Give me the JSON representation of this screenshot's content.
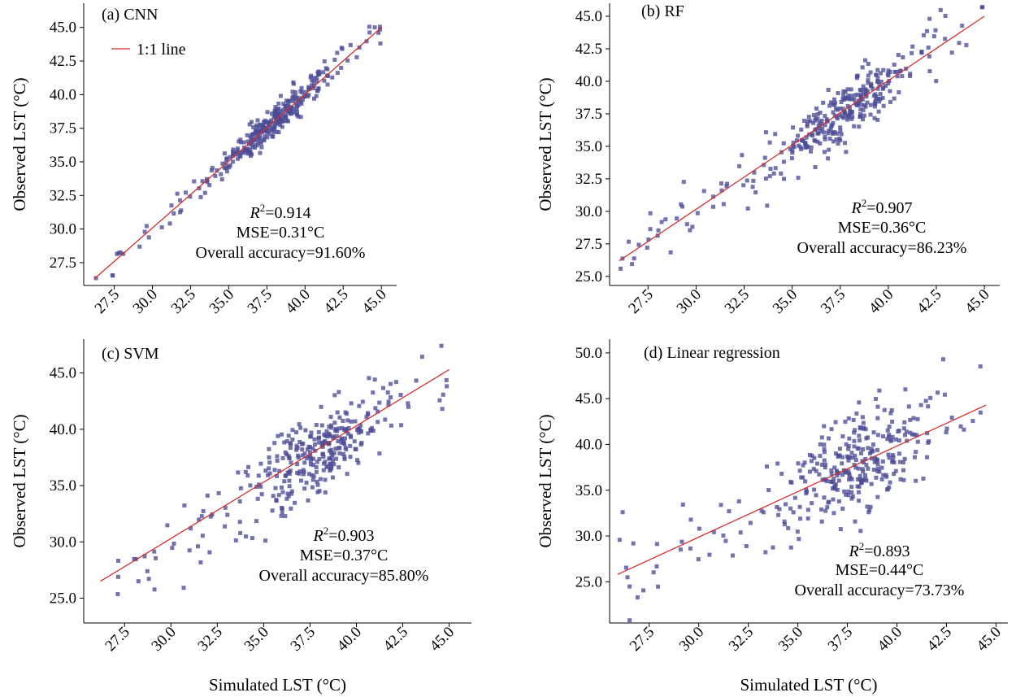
{
  "figure": {
    "x_label": "Simulated LST (°C)",
    "y_label": "Observed LST (°C)",
    "legend_label": "1:1 line",
    "marker_color": "#4b4b96",
    "line_color": "#d32f2f"
  },
  "chart_data": [
    {
      "id": "a",
      "type": "scatter",
      "title": "(a) CNN",
      "xlabel": "",
      "ylabel": "Observed LST (°C)",
      "xlim": [
        25.5,
        46.0
      ],
      "ylim": [
        25.8,
        46.8
      ],
      "xticks": [
        "27.5",
        "30.0",
        "32.5",
        "35.0",
        "37.5",
        "40.0",
        "42.5",
        "45.0"
      ],
      "yticks": [
        "27.5",
        "30.0",
        "32.5",
        "35.0",
        "37.5",
        "40.0",
        "42.5",
        "45.0"
      ],
      "stats": {
        "r2_label": "R",
        "r2_value": "=0.914",
        "mse": "MSE=0.31°C",
        "accuracy": "Overall accuracy=91.60%"
      },
      "fit_line": [
        [
          26.2,
          26.3
        ],
        [
          45.0,
          45.0
        ]
      ],
      "legend": {
        "label": "1:1 line",
        "placement": "top-left"
      },
      "scatter": {
        "count": 330,
        "x_range": [
          26.3,
          45.1
        ],
        "noise": 0.55,
        "cluster_center": 38.0,
        "cluster_spread": 1.9,
        "seed": 11
      }
    },
    {
      "id": "b",
      "type": "scatter",
      "title": "(b) RF",
      "xlabel": "",
      "ylabel": "Observed LST (°C)",
      "xlim": [
        25.5,
        45.8
      ],
      "ylim": [
        24.3,
        46.0
      ],
      "xticks": [
        "27.5",
        "30.0",
        "32.5",
        "35.0",
        "37.5",
        "40.0",
        "42.5",
        "45.0"
      ],
      "yticks": [
        "25.0",
        "27.5",
        "30.0",
        "32.5",
        "35.0",
        "37.5",
        "40.0",
        "42.5",
        "45.0"
      ],
      "stats": {
        "r2_label": "R",
        "r2_value": "=0.907",
        "mse": "MSE=0.36°C",
        "accuracy": "Overall accuracy=86.23%"
      },
      "fit_line": [
        [
          26.0,
          26.2
        ],
        [
          45.0,
          45.0
        ]
      ],
      "scatter": {
        "count": 330,
        "x_range": [
          26.0,
          45.0
        ],
        "noise": 1.1,
        "cluster_center": 37.8,
        "cluster_spread": 1.9,
        "seed": 23
      }
    },
    {
      "id": "c",
      "type": "scatter",
      "title": "(c) SVM",
      "xlabel": "Simulated LST (°C)",
      "ylabel": "Observed LST (°C)",
      "xlim": [
        25.3,
        46.2
      ],
      "ylim": [
        22.8,
        48.0
      ],
      "xticks": [
        "27.5",
        "30.0",
        "32.5",
        "35.0",
        "37.5",
        "40.0",
        "42.5",
        "45.0"
      ],
      "yticks": [
        "25.0",
        "30.0",
        "35.0",
        "40.0",
        "45.0"
      ],
      "stats": {
        "r2_label": "R",
        "r2_value": "=0.903",
        "mse": "MSE=0.37°C",
        "accuracy": "Overall accuracy=85.80%"
      },
      "fit_line": [
        [
          26.2,
          26.5
        ],
        [
          45.0,
          45.3
        ]
      ],
      "scatter": {
        "count": 330,
        "x_range": [
          26.3,
          45.0
        ],
        "noise": 1.7,
        "cluster_center": 37.8,
        "cluster_spread": 1.9,
        "seed": 37
      }
    },
    {
      "id": "d",
      "type": "scatter",
      "title": "(d) Linear regression",
      "xlabel": "Simulated LST (°C)",
      "ylabel": "Observed LST (°C)",
      "xlim": [
        25.5,
        45.6
      ],
      "ylim": [
        20.5,
        51.5
      ],
      "xticks": [
        "27.5",
        "30.0",
        "32.5",
        "35.0",
        "37.5",
        "40.0",
        "42.5",
        "45.0"
      ],
      "yticks": [
        "25.0",
        "30.0",
        "35.0",
        "40.0",
        "45.0",
        "50.0"
      ],
      "stats": {
        "r2_label": "R",
        "r2_value": "=0.893",
        "mse": "MSE=0.44°C",
        "accuracy": "Overall accuracy=73.73%"
      },
      "fit_line": [
        [
          25.9,
          25.8
        ],
        [
          44.5,
          44.3
        ]
      ],
      "scatter": {
        "count": 330,
        "x_range": [
          25.9,
          44.6
        ],
        "noise": 3.0,
        "cluster_center": 37.8,
        "cluster_spread": 1.9,
        "seed": 53
      }
    }
  ]
}
